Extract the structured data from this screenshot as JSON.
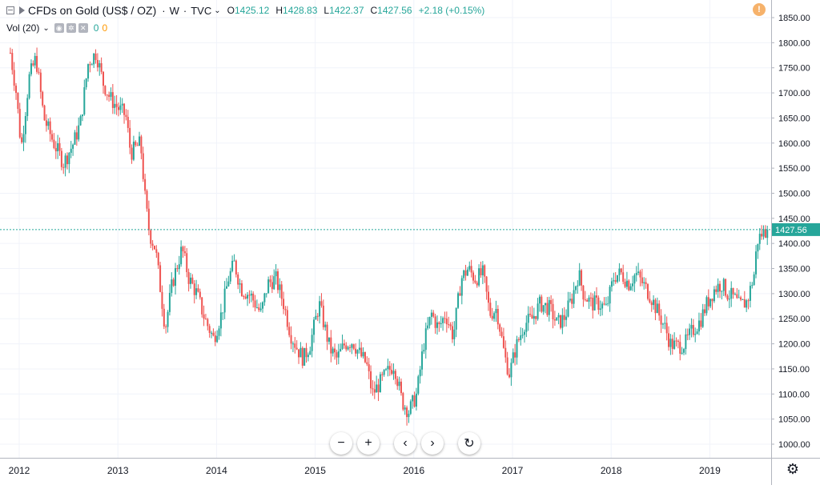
{
  "header": {
    "symbol": "CFDs on Gold (US$ / OZ)",
    "interval": "W",
    "source": "TVC",
    "ohlc": [
      {
        "label": "O",
        "value": "1425.12"
      },
      {
        "label": "H",
        "value": "1428.83"
      },
      {
        "label": "L",
        "value": "1422.37"
      },
      {
        "label": "C",
        "value": "1427.56"
      }
    ],
    "change": "+2.18 (+0.15%)"
  },
  "volume_legend": {
    "label": "Vol (20)",
    "value1": "0",
    "value2": "0"
  },
  "icons": {
    "alert": "exclamation-circle-icon",
    "zoom_out": "minus-icon",
    "zoom_in": "plus-icon",
    "scroll_left": "chevron-left-icon",
    "scroll_right": "chevron-right-icon",
    "reset": "reset-icon",
    "settings": "gear-icon"
  },
  "colors": {
    "up": "#26a69a",
    "down": "#ef5350",
    "last_price_line": "#26a69a",
    "grid": "#f0f3fa"
  },
  "chart_data": {
    "type": "candlestick",
    "title": "CFDs on Gold (US$ / OZ)",
    "interval": "W",
    "last_price": 1427.56,
    "ylim": [
      970,
      1875
    ],
    "y_ticks": [
      1000,
      1050,
      1100,
      1150,
      1200,
      1250,
      1300,
      1350,
      1400,
      1450,
      1500,
      1550,
      1600,
      1650,
      1700,
      1750,
      1800,
      1850
    ],
    "x_tick_labels": [
      "2012",
      "2013",
      "2014",
      "2015",
      "2016",
      "2017",
      "2018",
      "2019"
    ],
    "xlim": [
      2011.91,
      2019.59
    ],
    "path_points": [
      {
        "t": 2011.91,
        "p": 1780
      },
      {
        "t": 2011.97,
        "p": 1700
      },
      {
        "t": 2012.02,
        "p": 1590
      },
      {
        "t": 2012.1,
        "p": 1730
      },
      {
        "t": 2012.17,
        "p": 1770
      },
      {
        "t": 2012.25,
        "p": 1650
      },
      {
        "t": 2012.35,
        "p": 1600
      },
      {
        "t": 2012.45,
        "p": 1560
      },
      {
        "t": 2012.55,
        "p": 1600
      },
      {
        "t": 2012.62,
        "p": 1640
      },
      {
        "t": 2012.7,
        "p": 1760
      },
      {
        "t": 2012.78,
        "p": 1780
      },
      {
        "t": 2012.85,
        "p": 1720
      },
      {
        "t": 2012.92,
        "p": 1690
      },
      {
        "t": 2013.0,
        "p": 1670
      },
      {
        "t": 2013.08,
        "p": 1655
      },
      {
        "t": 2013.13,
        "p": 1580
      },
      {
        "t": 2013.23,
        "p": 1600
      },
      {
        "t": 2013.28,
        "p": 1480
      },
      {
        "t": 2013.32,
        "p": 1420
      },
      {
        "t": 2013.38,
        "p": 1390
      },
      {
        "t": 2013.45,
        "p": 1280
      },
      {
        "t": 2013.48,
        "p": 1230
      },
      {
        "t": 2013.55,
        "p": 1320
      },
      {
        "t": 2013.65,
        "p": 1390
      },
      {
        "t": 2013.72,
        "p": 1330
      },
      {
        "t": 2013.8,
        "p": 1300
      },
      {
        "t": 2013.88,
        "p": 1250
      },
      {
        "t": 2013.97,
        "p": 1210
      },
      {
        "t": 2014.05,
        "p": 1260
      },
      {
        "t": 2014.12,
        "p": 1330
      },
      {
        "t": 2014.18,
        "p": 1360
      },
      {
        "t": 2014.25,
        "p": 1310
      },
      {
        "t": 2014.35,
        "p": 1295
      },
      {
        "t": 2014.45,
        "p": 1260
      },
      {
        "t": 2014.52,
        "p": 1320
      },
      {
        "t": 2014.6,
        "p": 1330
      },
      {
        "t": 2014.68,
        "p": 1280
      },
      {
        "t": 2014.75,
        "p": 1220
      },
      {
        "t": 2014.82,
        "p": 1190
      },
      {
        "t": 2014.88,
        "p": 1170
      },
      {
        "t": 2014.95,
        "p": 1200
      },
      {
        "t": 2015.04,
        "p": 1280
      },
      {
        "t": 2015.1,
        "p": 1230
      },
      {
        "t": 2015.15,
        "p": 1190
      },
      {
        "t": 2015.22,
        "p": 1170
      },
      {
        "t": 2015.3,
        "p": 1200
      },
      {
        "t": 2015.38,
        "p": 1205
      },
      {
        "t": 2015.45,
        "p": 1180
      },
      {
        "t": 2015.52,
        "p": 1160
      },
      {
        "t": 2015.58,
        "p": 1100
      },
      {
        "t": 2015.65,
        "p": 1120
      },
      {
        "t": 2015.72,
        "p": 1140
      },
      {
        "t": 2015.8,
        "p": 1160
      },
      {
        "t": 2015.88,
        "p": 1085
      },
      {
        "t": 2015.95,
        "p": 1065
      },
      {
        "t": 2016.03,
        "p": 1100
      },
      {
        "t": 2016.1,
        "p": 1200
      },
      {
        "t": 2016.18,
        "p": 1260
      },
      {
        "t": 2016.25,
        "p": 1230
      },
      {
        "t": 2016.32,
        "p": 1260
      },
      {
        "t": 2016.4,
        "p": 1215
      },
      {
        "t": 2016.48,
        "p": 1330
      },
      {
        "t": 2016.55,
        "p": 1350
      },
      {
        "t": 2016.62,
        "p": 1330
      },
      {
        "t": 2016.7,
        "p": 1340
      },
      {
        "t": 2016.77,
        "p": 1260
      },
      {
        "t": 2016.84,
        "p": 1270
      },
      {
        "t": 2016.92,
        "p": 1175
      },
      {
        "t": 2016.97,
        "p": 1140
      },
      {
        "t": 2017.03,
        "p": 1190
      },
      {
        "t": 2017.12,
        "p": 1240
      },
      {
        "t": 2017.2,
        "p": 1250
      },
      {
        "t": 2017.28,
        "p": 1280
      },
      {
        "t": 2017.38,
        "p": 1270
      },
      {
        "t": 2017.45,
        "p": 1240
      },
      {
        "t": 2017.52,
        "p": 1250
      },
      {
        "t": 2017.6,
        "p": 1290
      },
      {
        "t": 2017.67,
        "p": 1340
      },
      {
        "t": 2017.72,
        "p": 1300
      },
      {
        "t": 2017.8,
        "p": 1280
      },
      {
        "t": 2017.88,
        "p": 1280
      },
      {
        "t": 2017.95,
        "p": 1270
      },
      {
        "t": 2018.03,
        "p": 1335
      },
      {
        "t": 2018.1,
        "p": 1340
      },
      {
        "t": 2018.18,
        "p": 1320
      },
      {
        "t": 2018.25,
        "p": 1340
      },
      {
        "t": 2018.32,
        "p": 1320
      },
      {
        "t": 2018.4,
        "p": 1295
      },
      {
        "t": 2018.48,
        "p": 1260
      },
      {
        "t": 2018.55,
        "p": 1230
      },
      {
        "t": 2018.6,
        "p": 1200
      },
      {
        "t": 2018.67,
        "p": 1195
      },
      {
        "t": 2018.75,
        "p": 1200
      },
      {
        "t": 2018.82,
        "p": 1225
      },
      {
        "t": 2018.9,
        "p": 1245
      },
      {
        "t": 2018.97,
        "p": 1280
      },
      {
        "t": 2019.05,
        "p": 1310
      },
      {
        "t": 2019.12,
        "p": 1320
      },
      {
        "t": 2019.18,
        "p": 1300
      },
      {
        "t": 2019.25,
        "p": 1290
      },
      {
        "t": 2019.3,
        "p": 1275
      },
      {
        "t": 2019.38,
        "p": 1285
      },
      {
        "t": 2019.45,
        "p": 1340
      },
      {
        "t": 2019.48,
        "p": 1405
      },
      {
        "t": 2019.53,
        "p": 1420
      },
      {
        "t": 2019.59,
        "p": 1427.56
      }
    ]
  }
}
